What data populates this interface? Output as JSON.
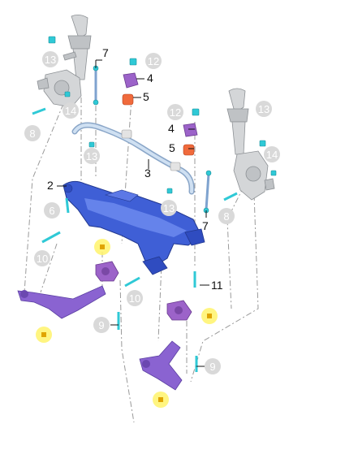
{
  "callouts": {
    "c2": "2",
    "c3": "3",
    "c4a": "4",
    "c4b": "4",
    "c5a": "5",
    "c5b": "5",
    "c6": "6",
    "c7a": "7",
    "c7b": "7",
    "c8a": "8",
    "c8b": "8",
    "c9a": "9",
    "c9b": "9",
    "c10a": "10",
    "c10b": "10",
    "c11": "11",
    "c12a": "12",
    "c12b": "12",
    "c13a": "13",
    "c13b": "13",
    "c13c": "13",
    "c13d": "13",
    "c14a": "14",
    "c14b": "14"
  },
  "colors": {
    "subframe": "#3f5fd6",
    "stabilizer": "#b8d0ea",
    "bolt": "#2fc9d6",
    "bushing": "#9c63c9",
    "highlight": "#fff36b"
  }
}
